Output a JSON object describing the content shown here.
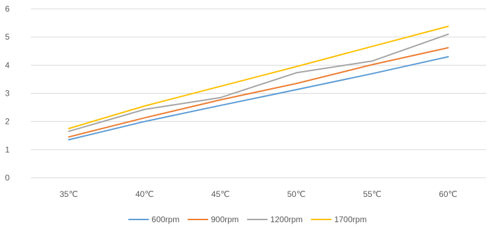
{
  "chart_data": {
    "type": "line",
    "title": "",
    "xlabel": "",
    "ylabel": "",
    "categories": [
      "35℃",
      "40℃",
      "45℃",
      "50℃",
      "55℃",
      "60℃"
    ],
    "ylim": [
      0,
      6
    ],
    "yticks": [
      "0",
      "1",
      "2",
      "3",
      "4",
      "5",
      "6"
    ],
    "grid": true,
    "legend_position": "bottom",
    "series": [
      {
        "name": "600rpm",
        "color": "#5b9bd5",
        "values": [
          1.35,
          2.0,
          2.57,
          3.13,
          3.7,
          4.3
        ]
      },
      {
        "name": "900rpm",
        "color": "#ed7d31",
        "values": [
          1.45,
          2.13,
          2.77,
          3.35,
          4.02,
          4.62
        ]
      },
      {
        "name": "1200rpm",
        "color": "#a5a5a5",
        "values": [
          1.65,
          2.43,
          2.85,
          3.73,
          4.15,
          5.1
        ]
      },
      {
        "name": "1700rpm",
        "color": "#ffc000",
        "values": [
          1.75,
          2.55,
          3.25,
          3.95,
          4.67,
          5.38
        ]
      }
    ]
  }
}
